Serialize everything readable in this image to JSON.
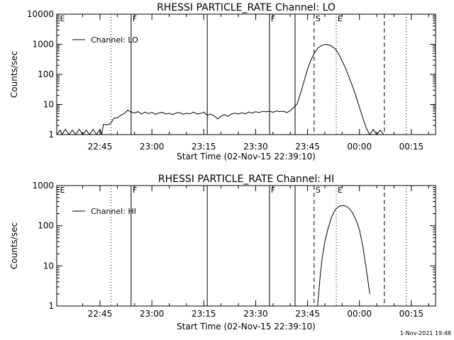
{
  "footer": {
    "stamp": "1-Nov-2021 19:48"
  },
  "chart_data": [
    {
      "type": "line",
      "title": "RHESSI PARTICLE_RATE Channel: LO",
      "xlabel": "Start Time (02-Nov-15 22:39:10)",
      "ylabel": "Counts/sec",
      "yscale": "log",
      "ylim": [
        1,
        10000
      ],
      "yticks": [
        "1",
        "10",
        "100",
        "1000",
        "10000"
      ],
      "xlim_minutes": [
        -7.5,
        102
      ],
      "xticks": [
        "22:45",
        "23:00",
        "23:15",
        "23:30",
        "23:45",
        "00:00",
        "00:15"
      ],
      "grid": false,
      "legend": {
        "position": "top-left",
        "entries": [
          "Channel: LO"
        ]
      },
      "series": [
        {
          "name": "Channel: LO",
          "x_minutes": [
            -7.5,
            -6.5,
            -6,
            -5,
            -4,
            -3,
            -2,
            -1,
            0,
            1,
            2,
            3,
            4,
            5,
            5.5,
            6,
            7,
            8,
            9,
            10,
            11,
            12,
            13,
            14,
            15,
            16,
            17,
            18,
            19,
            20,
            21,
            22,
            23,
            24,
            25,
            26,
            27,
            28,
            29,
            30,
            31,
            32,
            33,
            34,
            35,
            36,
            37,
            38,
            39,
            40,
            41,
            42,
            43,
            44,
            45,
            46,
            47,
            48,
            49,
            50,
            51,
            52,
            53,
            54,
            55,
            56,
            57,
            58,
            59,
            60,
            61,
            62,
            63,
            64,
            65,
            66,
            67,
            68,
            69,
            70,
            71,
            72,
            73,
            74,
            75,
            76,
            77,
            78,
            79,
            80,
            81,
            82,
            83,
            84,
            85,
            86,
            87,
            88,
            89,
            90,
            91,
            92,
            93,
            94,
            95,
            96
          ],
          "values": [
            1,
            1.4,
            1,
            1.5,
            1,
            1.4,
            1,
            1.5,
            1,
            1.4,
            1,
            1.5,
            1,
            1.5,
            1,
            2.2,
            2.1,
            2.3,
            3.5,
            3.6,
            4.4,
            5,
            6.5,
            5.6,
            5.2,
            5.8,
            4.8,
            5.6,
            5,
            5.5,
            4.7,
            5.2,
            5.5,
            4.8,
            5.1,
            4.6,
            5.2,
            5.4,
            4.7,
            5.1,
            4.8,
            5.6,
            4.9,
            5.0,
            5.6,
            4.4,
            4.8,
            4.2,
            3.3,
            4.1,
            4.6,
            4.0,
            4.8,
            5.2,
            4.8,
            5.3,
            4.9,
            5.6,
            5.2,
            5.8,
            5.4,
            5.9,
            5.7,
            6.0,
            5.5,
            6.1,
            5.8,
            6.0,
            5.4,
            6.2,
            8,
            10.5,
            24,
            60,
            150,
            300,
            520,
            760,
            900,
            990,
            960,
            870,
            700,
            480,
            280,
            160,
            80,
            40,
            19,
            8,
            3.5,
            1.6,
            1,
            1.5,
            1,
            1.4,
            1,
            1,
            1,
            1,
            1,
            1,
            1,
            1,
            1,
            1
          ]
        }
      ],
      "annotations": [
        {
          "x_minutes": -7,
          "label": "E",
          "style": "none"
        },
        {
          "x_minutes": 8.2,
          "label": "",
          "style": "dotted"
        },
        {
          "x_minutes": 14.0,
          "label": "F",
          "style": "solid"
        },
        {
          "x_minutes": 36.0,
          "label": "",
          "style": "solid"
        },
        {
          "x_minutes": 54.0,
          "label": "F",
          "style": "solid"
        },
        {
          "x_minutes": 61.4,
          "label": "",
          "style": "solid"
        },
        {
          "x_minutes": 66.9,
          "label": "S",
          "style": "dashed"
        },
        {
          "x_minutes": 73.3,
          "label": "E",
          "style": "dotted"
        },
        {
          "x_minutes": 87.2,
          "label": "",
          "style": "dashed"
        },
        {
          "x_minutes": 93.5,
          "label": "",
          "style": "dotted"
        }
      ]
    },
    {
      "type": "line",
      "title": "RHESSI PARTICLE_RATE Channel: HI",
      "xlabel": "Start Time (02-Nov-15 22:39:10)",
      "ylabel": "Counts/sec",
      "yscale": "log",
      "ylim": [
        1,
        1000
      ],
      "yticks": [
        "1",
        "10",
        "100",
        "1000"
      ],
      "xlim_minutes": [
        -7.5,
        102
      ],
      "xticks": [
        "22:45",
        "23:00",
        "23:15",
        "23:30",
        "23:45",
        "00:00",
        "00:15"
      ],
      "grid": false,
      "legend": {
        "position": "top-left",
        "entries": [
          "Channel: HI"
        ]
      },
      "series": [
        {
          "name": "Channel: HI",
          "x_minutes": [
            67.9,
            68.2,
            68.6,
            69.2,
            70,
            71,
            72,
            73,
            74,
            75,
            76,
            77,
            78,
            79,
            80,
            81,
            82,
            83
          ],
          "values": [
            1,
            2,
            5,
            15,
            40,
            90,
            170,
            250,
            300,
            320,
            310,
            270,
            210,
            140,
            80,
            30,
            8,
            2
          ]
        }
      ],
      "annotations": [
        {
          "x_minutes": -7,
          "label": "E",
          "style": "none"
        },
        {
          "x_minutes": 8.2,
          "label": "",
          "style": "dotted"
        },
        {
          "x_minutes": 14.0,
          "label": "F",
          "style": "solid"
        },
        {
          "x_minutes": 36.0,
          "label": "",
          "style": "solid"
        },
        {
          "x_minutes": 54.0,
          "label": "F",
          "style": "solid"
        },
        {
          "x_minutes": 61.4,
          "label": "",
          "style": "solid"
        },
        {
          "x_minutes": 66.9,
          "label": "S",
          "style": "dashed"
        },
        {
          "x_minutes": 73.3,
          "label": "E",
          "style": "dotted"
        },
        {
          "x_minutes": 87.2,
          "label": "",
          "style": "dashed"
        },
        {
          "x_minutes": 93.5,
          "label": "",
          "style": "dotted"
        }
      ]
    }
  ]
}
